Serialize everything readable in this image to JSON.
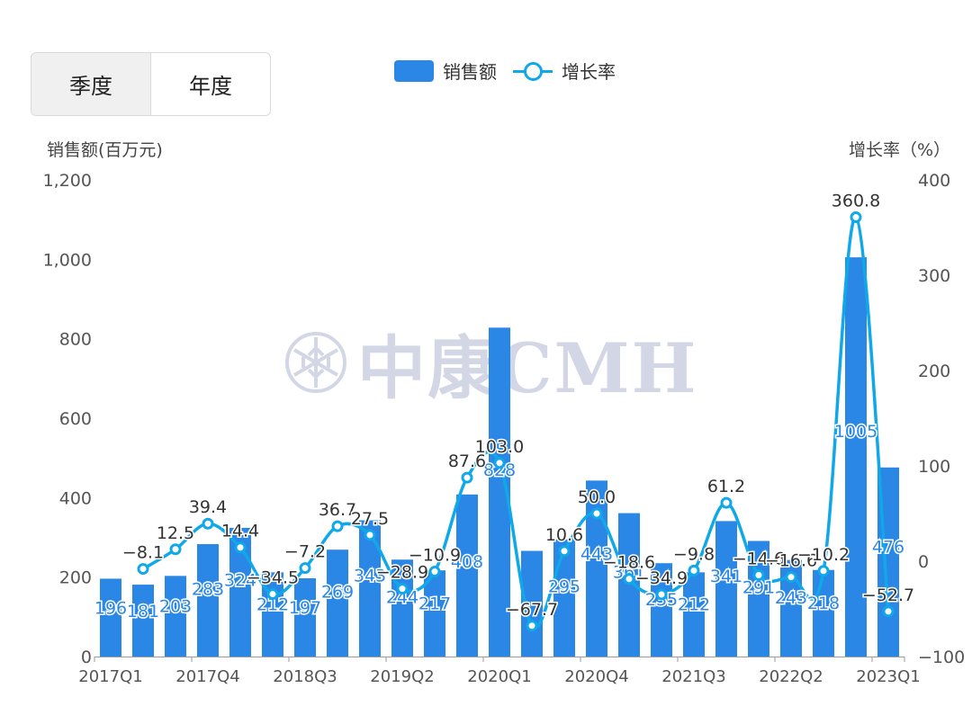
{
  "tabs": {
    "quarterly": "季度",
    "annual": "年度"
  },
  "legend": {
    "bar": "销售额",
    "line": "增长率"
  },
  "watermark": {
    "text": "中康CMH"
  },
  "colors": {
    "bar": "#2b87e6",
    "line": "#10a8e8",
    "active_tab_bg": "#f0f0f0"
  },
  "chart_data": {
    "type": "bar",
    "y_left": {
      "title": "销售额(百万元)",
      "range": [
        0,
        1200
      ],
      "ticks": [
        "0",
        "200",
        "400",
        "600",
        "800",
        "1,000",
        "1,200"
      ],
      "tick_values": [
        0,
        200,
        400,
        600,
        800,
        1000,
        1200
      ]
    },
    "y_right": {
      "title": "增长率（%）",
      "range": [
        -100,
        400
      ],
      "ticks": [
        "−100",
        "0",
        "100",
        "200",
        "300",
        "400"
      ],
      "tick_values": [
        -100,
        0,
        100,
        200,
        300,
        400
      ]
    },
    "x_ticks": [
      "2017Q1",
      "2017Q4",
      "2018Q3",
      "2019Q2",
      "2020Q1",
      "2020Q4",
      "2021Q3",
      "2022Q2",
      "2023Q1"
    ],
    "x_tick_index": [
      0,
      3,
      6,
      9,
      12,
      15,
      18,
      21,
      24
    ],
    "bar_values": [
      196,
      181,
      203,
      283,
      324,
      212,
      197,
      269,
      343,
      244,
      217,
      408,
      828,
      266,
      295,
      443,
      361,
      235,
      212,
      341,
      291,
      243,
      218,
      1005,
      476
    ],
    "bar_labels": [
      "196",
      "181",
      "203",
      "283",
      "324",
      "212",
      "197",
      "269",
      "343",
      "244",
      "217",
      "408",
      "828",
      "",
      "295",
      "443",
      "361",
      "235",
      "212",
      "341",
      "291",
      "243",
      "218",
      "1005",
      "476"
    ],
    "line_x_index": [
      1,
      2,
      3,
      4,
      5,
      6,
      7,
      8,
      9,
      10,
      11,
      12,
      13,
      14,
      15,
      16,
      17,
      18,
      19,
      20,
      21,
      22,
      23,
      24
    ],
    "line_values": [
      -8.1,
      12.5,
      39.4,
      14.4,
      -34.5,
      -7.2,
      36.7,
      27.5,
      -28.9,
      -10.9,
      87.6,
      103.0,
      -67.7,
      10.6,
      50.0,
      -18.6,
      -34.9,
      -9.8,
      61.2,
      -14.6,
      -16.6,
      -10.2,
      360.8,
      -52.7
    ],
    "line_labels": [
      "−8.1",
      "12.5",
      "39.4",
      "14.4",
      "−34.5",
      "−7.2",
      "36.7",
      "27.5",
      "−28.9",
      "−10.9",
      "87.6",
      "103.0",
      "−67.7",
      "10.6",
      "50.0",
      "−18.6",
      "−34.9",
      "−9.8",
      "61.2",
      "−14.6",
      "−16.6",
      "−10.2",
      "360.8",
      "−52.7"
    ],
    "grid": false
  }
}
